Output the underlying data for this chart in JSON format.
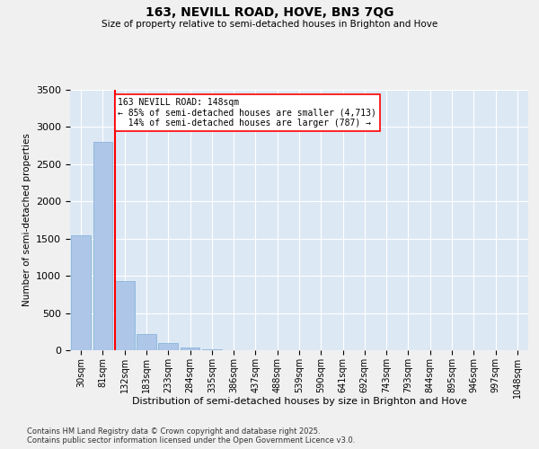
{
  "title": "163, NEVILL ROAD, HOVE, BN3 7QG",
  "subtitle": "Size of property relative to semi-detached houses in Brighton and Hove",
  "xlabel": "Distribution of semi-detached houses by size in Brighton and Hove",
  "ylabel": "Number of semi-detached properties",
  "bar_labels": [
    "30sqm",
    "81sqm",
    "132sqm",
    "183sqm",
    "233sqm",
    "284sqm",
    "335sqm",
    "386sqm",
    "437sqm",
    "488sqm",
    "539sqm",
    "590sqm",
    "641sqm",
    "692sqm",
    "743sqm",
    "793sqm",
    "844sqm",
    "895sqm",
    "946sqm",
    "997sqm",
    "1048sqm"
  ],
  "bar_values": [
    1540,
    2800,
    930,
    220,
    95,
    40,
    15,
    5,
    0,
    0,
    0,
    0,
    0,
    0,
    0,
    0,
    0,
    0,
    0,
    0,
    0
  ],
  "bar_color": "#aec6e8",
  "bar_edge_color": "#7bafd4",
  "property_line_bin": 2,
  "property_size": "148sqm",
  "pct_smaller": 85,
  "count_smaller": 4713,
  "pct_larger": 14,
  "count_larger": 787,
  "annotation_label": "163 NEVILL ROAD: 148sqm",
  "ylim": [
    0,
    3500
  ],
  "background_color": "#dde8f5",
  "grid_color": "#ffffff",
  "fig_bg_color": "#f0f0f0",
  "footer_line1": "Contains HM Land Registry data © Crown copyright and database right 2025.",
  "footer_line2": "Contains public sector information licensed under the Open Government Licence v3.0."
}
